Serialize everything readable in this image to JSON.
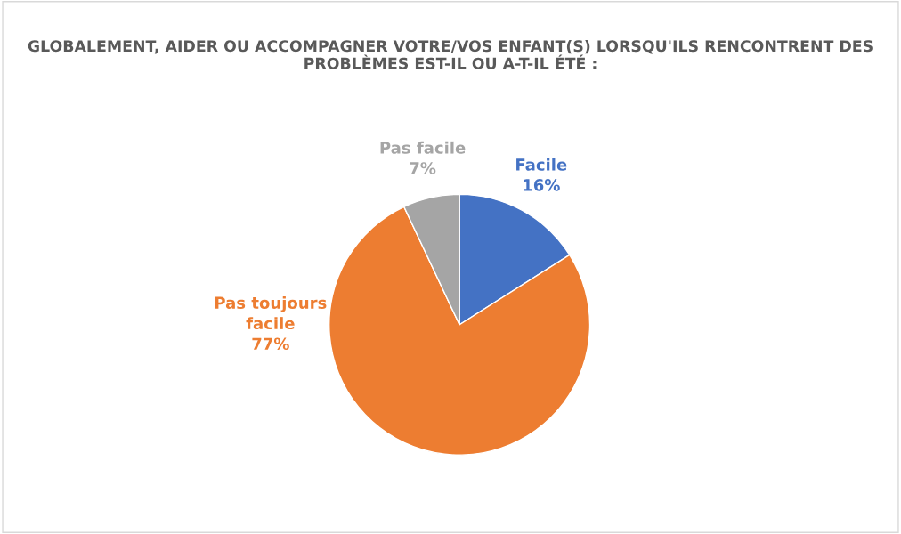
{
  "chart_data": {
    "type": "pie",
    "title": "GLOBALEMENT, AIDER OU ACCOMPAGNER VOTRE/VOS ENFANT(S) LORSQU'ILS RENCONTRENT DES PROBLÈMES EST-IL OU A-T-IL ÉTÉ :",
    "categories": [
      "Facile",
      "Pas toujours facile",
      "Pas facile"
    ],
    "values": [
      16,
      77,
      7
    ],
    "colors": [
      "#4472c4",
      "#ed7d31",
      "#a5a5a5"
    ],
    "value_labels": [
      "16%",
      "77%",
      "7%"
    ],
    "legend": false
  }
}
